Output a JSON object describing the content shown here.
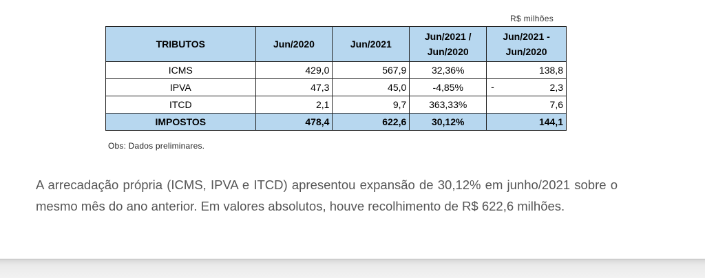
{
  "table": {
    "unit_note": "R$ milhões",
    "headers": [
      "TRIBUTOS",
      "Jun/2020",
      "Jun/2021",
      "Jun/2021 / Jun/2020",
      "Jun/2021 - Jun/2020"
    ],
    "header_lines": {
      "col3": [
        "Jun/2021 /",
        "Jun/2020"
      ],
      "col4": [
        "Jun/2021 -",
        "Jun/2020"
      ]
    },
    "rows": [
      {
        "name": "ICMS",
        "jun2020": "429,0",
        "jun2021": "567,9",
        "pct": "32,36%",
        "diff_sign": "",
        "diff": "138,8"
      },
      {
        "name": "IPVA",
        "jun2020": "47,3",
        "jun2021": "45,0",
        "pct": "-4,85%",
        "diff_sign": "-",
        "diff": "2,3"
      },
      {
        "name": "ITCD",
        "jun2020": "2,1",
        "jun2021": "9,7",
        "pct": "363,33%",
        "diff_sign": "",
        "diff": "7,6"
      }
    ],
    "total": {
      "name": "IMPOSTOS",
      "jun2020": "478,4",
      "jun2021": "622,6",
      "pct": "30,12%",
      "diff": "144,1"
    },
    "note": "Obs: Dados preliminares."
  },
  "paragraph": "A arrecadação própria (ICMS, IPVA e ITCD) apresentou expansão de 30,12% em junho/2021 sobre o mesmo mês do ano anterior. Em valores absolutos, houve recolhimento de R$ 622,6 milhões.",
  "colors": {
    "header_bg": "#b7d7ef",
    "text_gray": "#555555"
  }
}
